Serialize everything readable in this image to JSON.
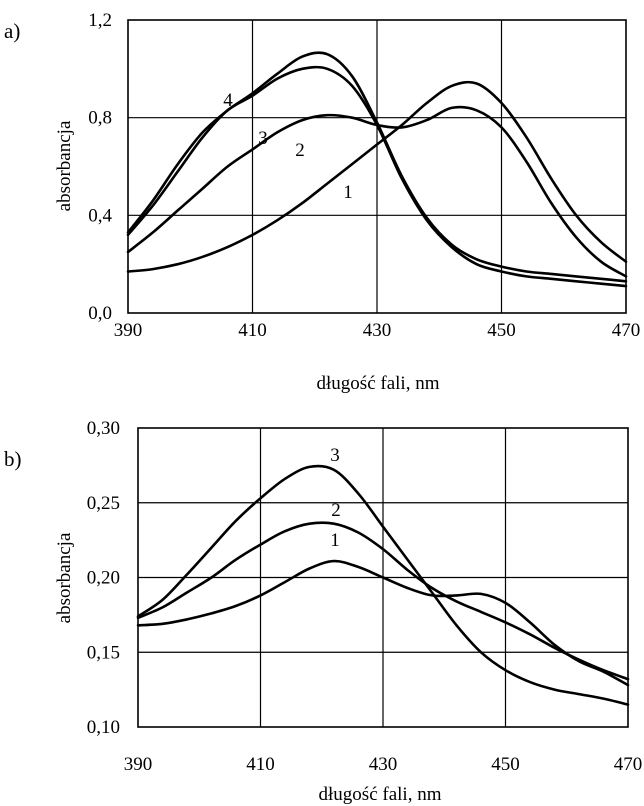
{
  "chart_data": [
    {
      "panel": "a)",
      "type": "line",
      "xlabel": "długość fali, nm",
      "ylabel": "absorbancja",
      "xlim": [
        390,
        470
      ],
      "ylim": [
        0.0,
        1.2
      ],
      "x_ticks": [
        "390",
        "410",
        "430",
        "450",
        "470"
      ],
      "y_ticks": [
        "0,0",
        "0,4",
        "0,8",
        "1,2"
      ],
      "grid": true,
      "series": [
        {
          "name": "1",
          "x": [
            390,
            394,
            398,
            402,
            406,
            410,
            414,
            418,
            422,
            426,
            430,
            434,
            438,
            442,
            446,
            450,
            454,
            458,
            462,
            466,
            470
          ],
          "values": [
            0.17,
            0.18,
            0.2,
            0.23,
            0.27,
            0.32,
            0.38,
            0.45,
            0.53,
            0.61,
            0.69,
            0.77,
            0.86,
            0.93,
            0.94,
            0.86,
            0.72,
            0.55,
            0.4,
            0.29,
            0.21
          ]
        },
        {
          "name": "2",
          "x": [
            390,
            394,
            398,
            402,
            406,
            410,
            414,
            418,
            422,
            426,
            430,
            434,
            438,
            442,
            446,
            450,
            454,
            458,
            462,
            466,
            470
          ],
          "values": [
            0.25,
            0.33,
            0.42,
            0.51,
            0.6,
            0.67,
            0.74,
            0.79,
            0.81,
            0.8,
            0.77,
            0.76,
            0.79,
            0.84,
            0.83,
            0.76,
            0.62,
            0.45,
            0.31,
            0.21,
            0.15
          ]
        },
        {
          "name": "3",
          "x": [
            390,
            394,
            398,
            402,
            406,
            410,
            414,
            418,
            422,
            426,
            430,
            434,
            438,
            442,
            446,
            450,
            454,
            458,
            462,
            466,
            470
          ],
          "values": [
            0.32,
            0.44,
            0.58,
            0.72,
            0.83,
            0.89,
            0.96,
            1.0,
            1.0,
            0.93,
            0.77,
            0.55,
            0.38,
            0.27,
            0.2,
            0.17,
            0.15,
            0.14,
            0.13,
            0.12,
            0.11
          ]
        },
        {
          "name": "4",
          "x": [
            390,
            394,
            398,
            402,
            406,
            410,
            414,
            418,
            422,
            426,
            430,
            434,
            438,
            442,
            446,
            450,
            454,
            458,
            462,
            466,
            470
          ],
          "values": [
            0.33,
            0.46,
            0.61,
            0.74,
            0.83,
            0.9,
            0.98,
            1.05,
            1.06,
            0.97,
            0.78,
            0.56,
            0.39,
            0.28,
            0.22,
            0.19,
            0.17,
            0.16,
            0.15,
            0.14,
            0.13
          ]
        }
      ]
    },
    {
      "panel": "b)",
      "type": "line",
      "xlabel": "długość fali, nm",
      "ylabel": "absorbancja",
      "xlim": [
        390,
        470
      ],
      "ylim": [
        0.1,
        0.3
      ],
      "x_ticks": [
        "390",
        "410",
        "430",
        "450",
        "470"
      ],
      "y_ticks": [
        "0,10",
        "0,15",
        "0,20",
        "0,25",
        "0,30"
      ],
      "grid": true,
      "series": [
        {
          "name": "1",
          "x": [
            390,
            394,
            398,
            402,
            406,
            410,
            414,
            418,
            422,
            426,
            430,
            434,
            438,
            442,
            446,
            450,
            454,
            458,
            462,
            466,
            470
          ],
          "values": [
            0.168,
            0.169,
            0.172,
            0.176,
            0.181,
            0.188,
            0.197,
            0.206,
            0.211,
            0.207,
            0.2,
            0.193,
            0.188,
            0.188,
            0.189,
            0.183,
            0.17,
            0.155,
            0.144,
            0.137,
            0.128
          ]
        },
        {
          "name": "2",
          "x": [
            390,
            394,
            398,
            402,
            406,
            410,
            414,
            418,
            422,
            426,
            430,
            434,
            438,
            442,
            446,
            450,
            454,
            458,
            462,
            466,
            470
          ],
          "values": [
            0.173,
            0.18,
            0.19,
            0.2,
            0.212,
            0.222,
            0.231,
            0.236,
            0.236,
            0.23,
            0.219,
            0.205,
            0.193,
            0.184,
            0.177,
            0.17,
            0.162,
            0.153,
            0.145,
            0.138,
            0.132
          ]
        },
        {
          "name": "3",
          "x": [
            390,
            394,
            398,
            402,
            406,
            410,
            414,
            418,
            422,
            426,
            430,
            434,
            438,
            442,
            446,
            450,
            454,
            458,
            462,
            466,
            470
          ],
          "values": [
            0.174,
            0.185,
            0.202,
            0.22,
            0.238,
            0.253,
            0.266,
            0.274,
            0.272,
            0.256,
            0.234,
            0.212,
            0.19,
            0.168,
            0.15,
            0.138,
            0.13,
            0.125,
            0.122,
            0.119,
            0.115
          ]
        }
      ]
    }
  ]
}
